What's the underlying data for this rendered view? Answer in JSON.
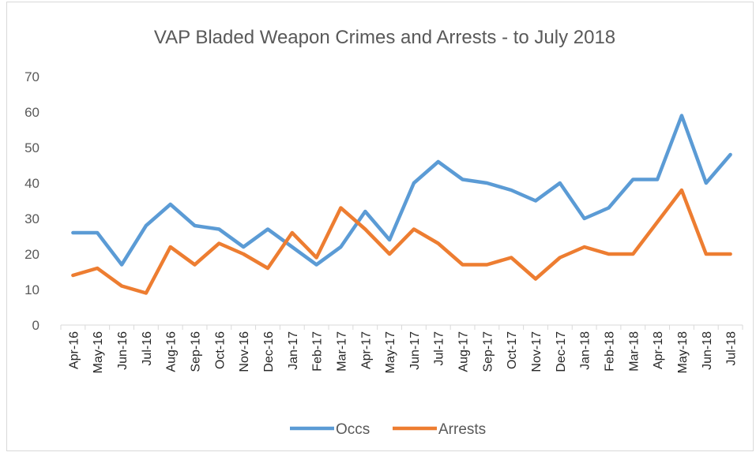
{
  "chart_data": {
    "type": "line",
    "title": "VAP Bladed Weapon Crimes and Arrests - to July 2018",
    "xlabel": "",
    "ylabel": "",
    "ylim": [
      0,
      70
    ],
    "yticks": [
      0,
      10,
      20,
      30,
      40,
      50,
      60,
      70
    ],
    "categories": [
      "Apr-16",
      "May-16",
      "Jun-16",
      "Jul-16",
      "Aug-16",
      "Sep-16",
      "Oct-16",
      "Nov-16",
      "Dec-16",
      "Jan-17",
      "Feb-17",
      "Mar-17",
      "Apr-17",
      "May-17",
      "Jun-17",
      "Jul-17",
      "Aug-17",
      "Sep-17",
      "Oct-17",
      "Nov-17",
      "Dec-17",
      "Jan-18",
      "Feb-18",
      "Mar-18",
      "Apr-18",
      "May-18",
      "Jun-18",
      "Jul-18"
    ],
    "series": [
      {
        "name": "Occs",
        "color": "#5b9bd5",
        "values": [
          26,
          26,
          17,
          28,
          34,
          28,
          27,
          22,
          27,
          22,
          17,
          22,
          32,
          24,
          40,
          46,
          41,
          40,
          38,
          35,
          40,
          30,
          33,
          41,
          41,
          59,
          40,
          48
        ]
      },
      {
        "name": "Arrests",
        "color": "#ed7d31",
        "values": [
          14,
          16,
          11,
          9,
          22,
          17,
          23,
          20,
          16,
          26,
          19,
          33,
          27,
          20,
          27,
          23,
          17,
          17,
          19,
          13,
          19,
          22,
          20,
          20,
          29,
          38,
          20,
          20
        ]
      }
    ],
    "grid": false,
    "legend_position": "bottom"
  }
}
